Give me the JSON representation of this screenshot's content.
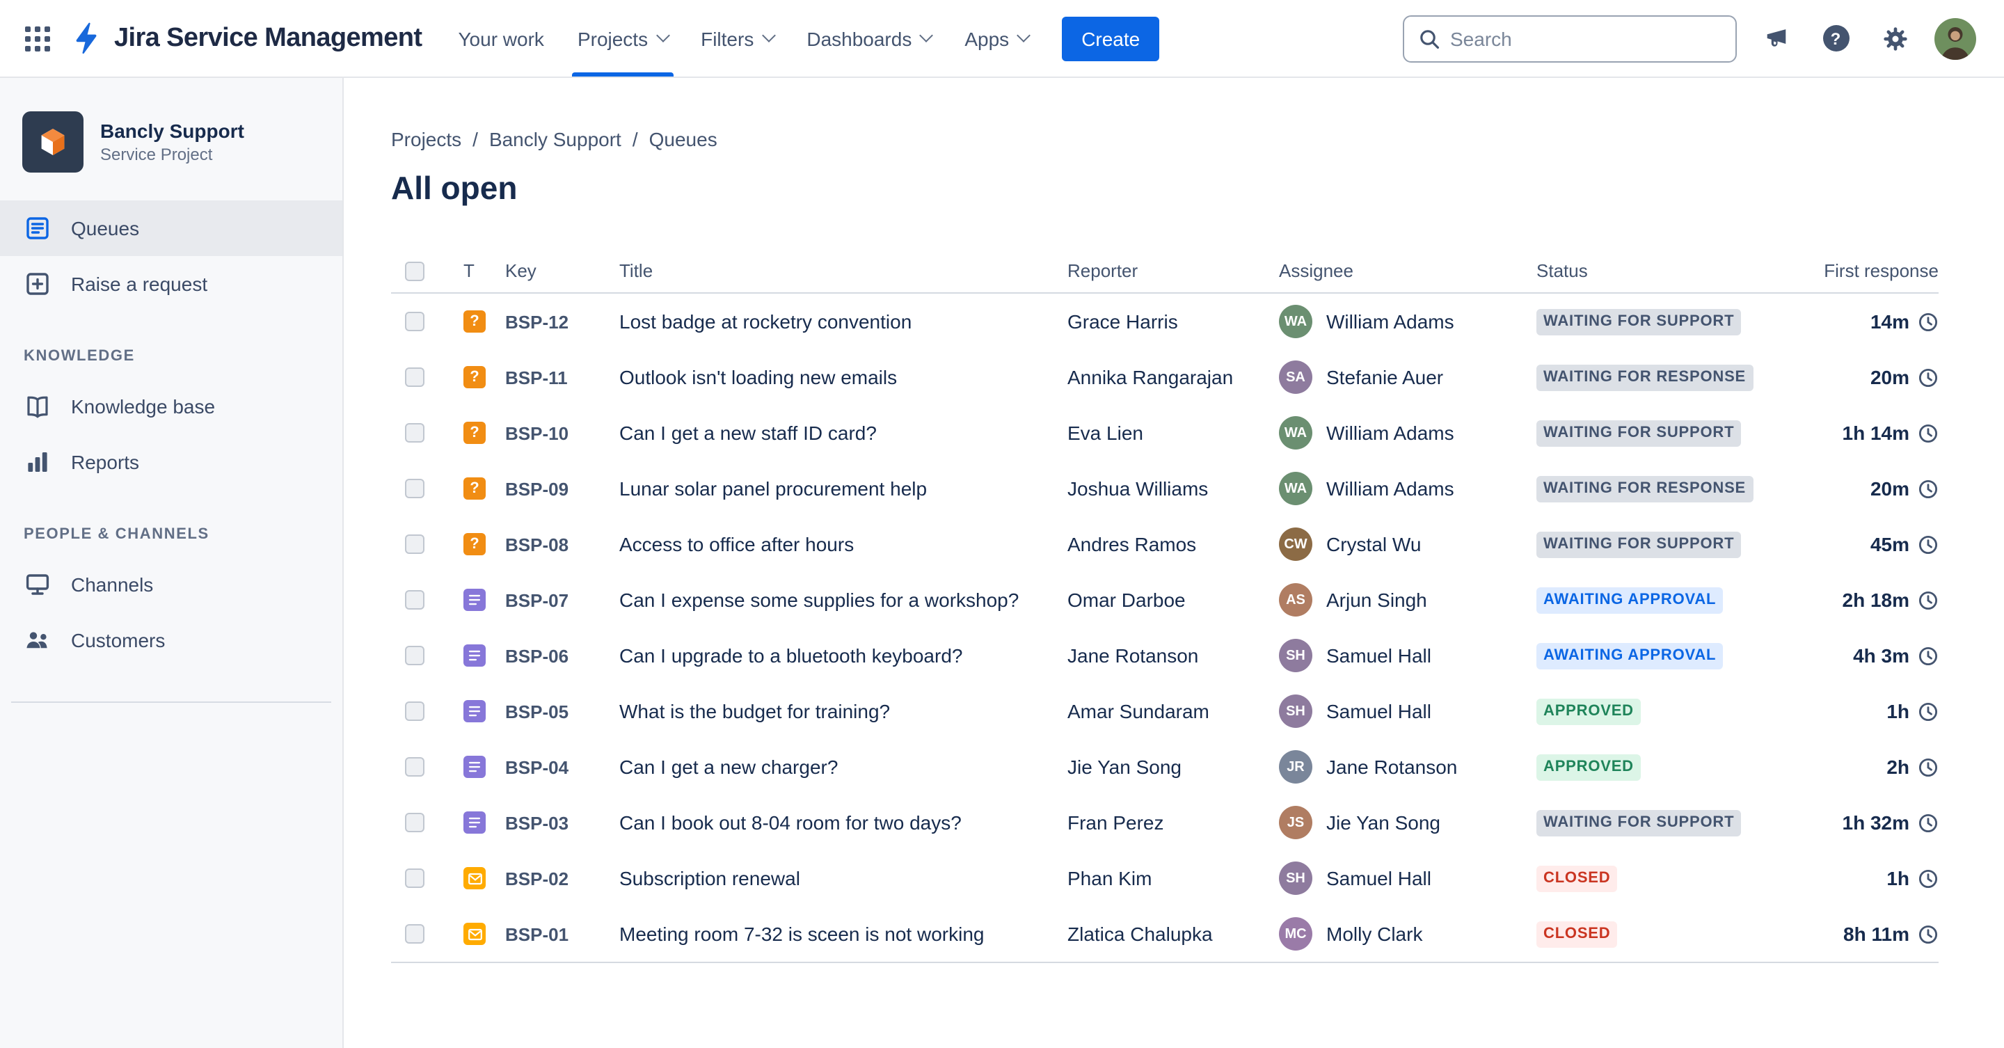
{
  "topbar": {
    "app_title": "Jira Service Management",
    "nav": [
      {
        "label": "Your work",
        "dropdown": false,
        "active": false
      },
      {
        "label": "Projects",
        "dropdown": true,
        "active": true
      },
      {
        "label": "Filters",
        "dropdown": true,
        "active": false
      },
      {
        "label": "Dashboards",
        "dropdown": true,
        "active": false
      },
      {
        "label": "Apps",
        "dropdown": true,
        "active": false
      }
    ],
    "create_label": "Create",
    "search": {
      "placeholder": "Search"
    },
    "icons": [
      "app-switcher-icon",
      "jira-logo-icon",
      "search-icon",
      "announcement-icon",
      "help-icon",
      "settings-icon",
      "user-avatar"
    ]
  },
  "sidebar": {
    "project": {
      "name": "Bancly Support",
      "type": "Service Project"
    },
    "items": [
      {
        "label": "Queues",
        "icon": "queues-icon",
        "selected": true
      },
      {
        "label": "Raise a request",
        "icon": "raise-request-icon",
        "selected": false
      }
    ],
    "sections": [
      {
        "heading": "KNOWLEDGE",
        "items": [
          {
            "label": "Knowledge base",
            "icon": "knowledge-base-icon",
            "selected": false
          },
          {
            "label": "Reports",
            "icon": "reports-icon",
            "selected": false
          }
        ]
      },
      {
        "heading": "PEOPLE & CHANNELS",
        "items": [
          {
            "label": "Channels",
            "icon": "channels-icon",
            "selected": false
          },
          {
            "label": "Customers",
            "icon": "customers-icon",
            "selected": false
          }
        ]
      }
    ]
  },
  "main": {
    "breadcrumb": [
      "Projects",
      "Bancly Support",
      "Queues"
    ],
    "title": "All open",
    "table": {
      "headers": {
        "type": "T",
        "key": "Key",
        "title": "Title",
        "reporter": "Reporter",
        "assignee": "Assignee",
        "status": "Status",
        "response": "First response"
      },
      "rows": [
        {
          "key": "BSP-12",
          "type": "question",
          "title": "Lost badge at rocketry convention",
          "reporter": "Grace Harris",
          "assignee": "William Adams",
          "status": "WAITING FOR SUPPORT",
          "status_color": "gray",
          "response": "14m"
        },
        {
          "key": "BSP-11",
          "type": "question",
          "title": "Outlook isn't loading new emails",
          "reporter": "Annika Rangarajan",
          "assignee": "Stefanie Auer",
          "status": "WAITING FOR RESPONSE",
          "status_color": "gray",
          "response": "20m"
        },
        {
          "key": "BSP-10",
          "type": "question",
          "title": "Can I get a new staff ID card?",
          "reporter": "Eva Lien",
          "assignee": "William Adams",
          "status": "WAITING FOR SUPPORT",
          "status_color": "gray",
          "response": "1h 14m"
        },
        {
          "key": "BSP-09",
          "type": "question",
          "title": "Lunar solar panel procurement help",
          "reporter": "Joshua Williams",
          "assignee": "William Adams",
          "status": "WAITING FOR RESPONSE",
          "status_color": "gray",
          "response": "20m"
        },
        {
          "key": "BSP-08",
          "type": "question",
          "title": "Access to office after hours",
          "reporter": "Andres Ramos",
          "assignee": "Crystal Wu",
          "status": "WAITING FOR SUPPORT",
          "status_color": "gray",
          "response": "45m"
        },
        {
          "key": "BSP-07",
          "type": "request",
          "title": "Can I expense some supplies for a workshop?",
          "reporter": "Omar Darboe",
          "assignee": "Arjun Singh",
          "status": "AWAITING APPROVAL",
          "status_color": "blue",
          "response": "2h 18m"
        },
        {
          "key": "BSP-06",
          "type": "request",
          "title": "Can I upgrade to a bluetooth keyboard?",
          "reporter": "Jane Rotanson",
          "assignee": "Samuel Hall",
          "status": "AWAITING APPROVAL",
          "status_color": "blue",
          "response": "4h 3m"
        },
        {
          "key": "BSP-05",
          "type": "request",
          "title": "What is the budget for training?",
          "reporter": "Amar Sundaram",
          "assignee": "Samuel Hall",
          "status": "APPROVED",
          "status_color": "green",
          "response": "1h"
        },
        {
          "key": "BSP-04",
          "type": "request",
          "title": "Can I get a new charger?",
          "reporter": "Jie Yan Song",
          "assignee": "Jane Rotanson",
          "status": "APPROVED",
          "status_color": "green",
          "response": "2h"
        },
        {
          "key": "BSP-03",
          "type": "request",
          "title": "Can I book out 8-04 room for two days?",
          "reporter": "Fran Perez",
          "assignee": "Jie Yan Song",
          "status": "WAITING FOR SUPPORT",
          "status_color": "gray",
          "response": "1h 32m"
        },
        {
          "key": "BSP-02",
          "type": "email",
          "title": "Subscription renewal",
          "reporter": "Phan Kim",
          "assignee": "Samuel Hall",
          "status": "CLOSED",
          "status_color": "red",
          "response": "1h"
        },
        {
          "key": "BSP-01",
          "type": "email",
          "title": "Meeting room 7-32 is sceen is not working",
          "reporter": "Zlatica Chalupka",
          "assignee": "Molly Clark",
          "status": "CLOSED",
          "status_color": "red",
          "response": "8h 11m"
        }
      ]
    }
  },
  "glyphs": {
    "help": "?",
    "question_mark": "?"
  },
  "colors": {
    "accent_blue": "#0C66E4",
    "status_gray_bg": "#DCE0E6",
    "status_gray_text": "#44546F",
    "status_blue_bg": "#DEEBFF",
    "status_blue_text": "#0B66E4",
    "status_green_bg": "#DCF5E7",
    "status_green_text": "#1F845A",
    "status_red_bg": "#FFECEB",
    "status_red_text": "#CA3521",
    "type_question": "#F18D13",
    "type_request": "#8777D9",
    "type_email": "#FFAB00"
  }
}
